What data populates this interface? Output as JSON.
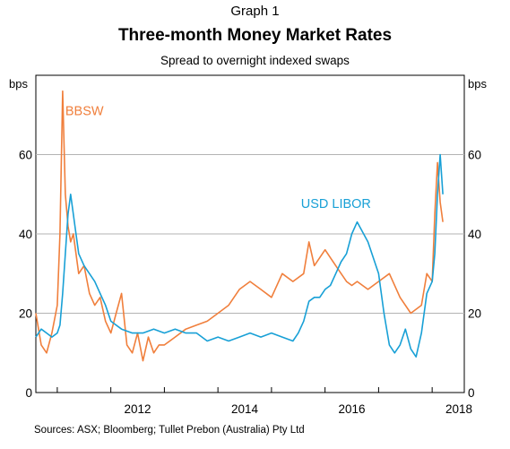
{
  "header": {
    "graph_label": "Graph 1",
    "title": "Three-month Money Market Rates",
    "subtitle": "Spread to overnight indexed swaps"
  },
  "footer": {
    "source": "Sources:   ASX; Bloomberg; Tullet Prebon (Australia) Pty Ltd"
  },
  "chart_data": {
    "type": "line",
    "title": "Three-month Money Market Rates",
    "subtitle": "Spread to overnight indexed swaps",
    "ylabel_left": "bps",
    "ylabel_right": "bps",
    "ylim": [
      0,
      80
    ],
    "xlim": [
      2010.6,
      2018.6
    ],
    "yticks": [
      0,
      20,
      40,
      60
    ],
    "xticks": [
      "2012",
      "2014",
      "2016",
      "2018"
    ],
    "grid": true,
    "series": [
      {
        "name": "BBSW",
        "color": "#f07f3c",
        "x": [
          2010.6,
          2010.7,
          2010.8,
          2010.9,
          2011.0,
          2011.05,
          2011.1,
          2011.15,
          2011.2,
          2011.25,
          2011.3,
          2011.35,
          2011.4,
          2011.5,
          2011.6,
          2011.7,
          2011.8,
          2011.9,
          2012.0,
          2012.1,
          2012.2,
          2012.3,
          2012.4,
          2012.5,
          2012.6,
          2012.7,
          2012.8,
          2012.9,
          2013.0,
          2013.2,
          2013.4,
          2013.6,
          2013.8,
          2014.0,
          2014.2,
          2014.4,
          2014.6,
          2014.8,
          2015.0,
          2015.2,
          2015.4,
          2015.6,
          2015.7,
          2015.8,
          2015.9,
          2016.0,
          2016.1,
          2016.2,
          2016.3,
          2016.4,
          2016.5,
          2016.6,
          2016.8,
          2017.0,
          2017.2,
          2017.4,
          2017.6,
          2017.8,
          2017.9,
          2018.0,
          2018.05,
          2018.1,
          2018.15,
          2018.2
        ],
        "values": [
          20,
          12,
          10,
          15,
          22,
          40,
          76,
          50,
          42,
          38,
          40,
          35,
          30,
          32,
          25,
          22,
          24,
          18,
          15,
          20,
          25,
          12,
          10,
          15,
          8,
          14,
          10,
          12,
          12,
          14,
          16,
          17,
          18,
          20,
          22,
          26,
          28,
          26,
          24,
          30,
          28,
          30,
          38,
          32,
          34,
          36,
          34,
          32,
          30,
          28,
          27,
          28,
          26,
          28,
          30,
          24,
          20,
          22,
          30,
          28,
          45,
          58,
          48,
          43
        ]
      },
      {
        "name": "USD LIBOR",
        "color": "#18a0d6",
        "x": [
          2010.6,
          2010.7,
          2010.8,
          2010.9,
          2011.0,
          2011.05,
          2011.1,
          2011.15,
          2011.2,
          2011.25,
          2011.3,
          2011.35,
          2011.4,
          2011.5,
          2011.6,
          2011.7,
          2011.8,
          2011.9,
          2012.0,
          2012.2,
          2012.4,
          2012.6,
          2012.8,
          2013.0,
          2013.2,
          2013.4,
          2013.6,
          2013.8,
          2014.0,
          2014.2,
          2014.4,
          2014.6,
          2014.8,
          2015.0,
          2015.2,
          2015.4,
          2015.5,
          2015.6,
          2015.7,
          2015.8,
          2015.9,
          2016.0,
          2016.1,
          2016.2,
          2016.3,
          2016.4,
          2016.5,
          2016.6,
          2016.8,
          2017.0,
          2017.1,
          2017.2,
          2017.3,
          2017.4,
          2017.5,
          2017.6,
          2017.7,
          2017.8,
          2017.9,
          2018.0,
          2018.05,
          2018.1,
          2018.15,
          2018.2
        ],
        "values": [
          14,
          16,
          15,
          14,
          15,
          17,
          25,
          35,
          45,
          50,
          45,
          40,
          35,
          32,
          30,
          28,
          25,
          22,
          18,
          16,
          15,
          15,
          16,
          15,
          16,
          15,
          15,
          13,
          14,
          13,
          14,
          15,
          14,
          15,
          14,
          13,
          15,
          18,
          23,
          24,
          24,
          26,
          27,
          30,
          33,
          35,
          40,
          43,
          38,
          30,
          20,
          12,
          10,
          12,
          16,
          11,
          9,
          15,
          25,
          28,
          35,
          50,
          60,
          50
        ]
      }
    ],
    "annotations": [
      {
        "text": "BBSW",
        "x": 2011.15,
        "y": 70,
        "color": "#f07f3c"
      },
      {
        "text": "USD LIBOR",
        "x": 2015.55,
        "y": 46.5,
        "color": "#18a0d6"
      }
    ]
  }
}
